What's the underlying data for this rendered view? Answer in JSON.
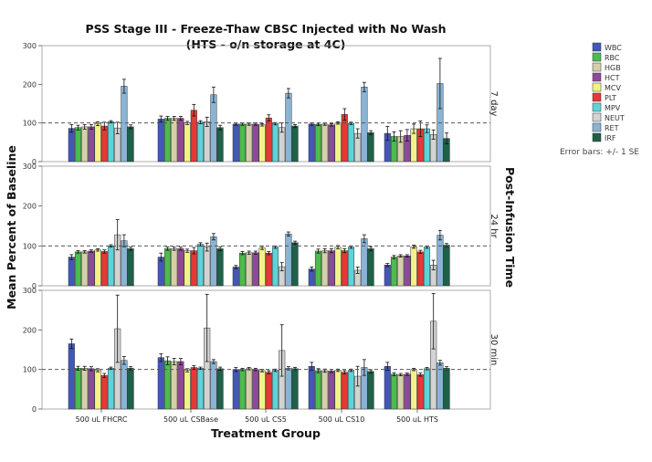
{
  "chart_data": {
    "type": "bar",
    "title": "PSS Stage III - Freeze-Thaw CBSC Injected with No Wash",
    "subtitle": "(HTS - o/n storage at 4C)",
    "xlabel": "Treatment Group",
    "ylabel": "Mean Percent of Baseline",
    "right_label": "Post-Infusion Time",
    "error_note": "Error bars: +/- 1 SE",
    "reference_line": 100,
    "ylim": [
      0,
      300
    ],
    "yticks": [
      "0",
      "100",
      "200",
      "300"
    ],
    "legend_position": "top-right",
    "categories": [
      "500 uL FHCRC",
      "500 uL CSBase",
      "500 uL CS5",
      "500 uL CS10",
      "500 uL HTS"
    ],
    "series": [
      {
        "name": "WBC",
        "color": "#4357b8"
      },
      {
        "name": "RBC",
        "color": "#4dbb4d"
      },
      {
        "name": "HGB",
        "color": "#d4d0a8"
      },
      {
        "name": "HCT",
        "color": "#8e4a9a"
      },
      {
        "name": "MCV",
        "color": "#f4f286"
      },
      {
        "name": "PLT",
        "color": "#e53935"
      },
      {
        "name": "MPV",
        "color": "#5fd3d8"
      },
      {
        "name": "NEUT",
        "color": "#d3d3d3"
      },
      {
        "name": "RET",
        "color": "#89b4d6"
      },
      {
        "name": "IRF",
        "color": "#1f6048"
      }
    ],
    "panels": [
      {
        "label": "7 day",
        "values": [
          [
            86,
            88,
            90,
            90,
            98,
            92,
            103,
            87,
            195,
            90
          ],
          [
            110,
            112,
            112,
            112,
            100,
            133,
            102,
            103,
            173,
            88
          ],
          [
            97,
            97,
            97,
            97,
            95,
            113,
            98,
            88,
            177,
            92
          ],
          [
            97,
            96,
            97,
            95,
            100,
            122,
            99,
            73,
            193,
            75
          ],
          [
            73,
            65,
            65,
            68,
            85,
            85,
            85,
            70,
            202,
            60
          ]
        ],
        "errors": [
          [
            10,
            6,
            6,
            6,
            5,
            10,
            3,
            15,
            18,
            5
          ],
          [
            8,
            5,
            5,
            5,
            4,
            15,
            4,
            12,
            20,
            6
          ],
          [
            3,
            3,
            3,
            3,
            3,
            8,
            3,
            12,
            12,
            4
          ],
          [
            3,
            3,
            3,
            3,
            3,
            15,
            3,
            12,
            12,
            5
          ],
          [
            18,
            12,
            15,
            15,
            12,
            20,
            10,
            12,
            65,
            14
          ]
        ]
      },
      {
        "label": "24 hr",
        "values": [
          [
            72,
            85,
            85,
            87,
            90,
            86,
            100,
            128,
            113,
            93
          ],
          [
            72,
            93,
            93,
            93,
            88,
            88,
            104,
            97,
            123,
            93
          ],
          [
            47,
            82,
            83,
            83,
            95,
            82,
            97,
            48,
            130,
            108
          ],
          [
            42,
            87,
            88,
            88,
            97,
            88,
            97,
            39,
            118,
            93
          ],
          [
            52,
            72,
            75,
            75,
            98,
            85,
            97,
            52,
            127,
            102
          ]
        ],
        "errors": [
          [
            6,
            3,
            3,
            3,
            3,
            4,
            3,
            38,
            15,
            4
          ],
          [
            10,
            4,
            4,
            4,
            4,
            8,
            4,
            10,
            8,
            5
          ],
          [
            4,
            4,
            4,
            4,
            4,
            4,
            3,
            10,
            5,
            4
          ],
          [
            5,
            5,
            5,
            5,
            4,
            5,
            3,
            8,
            10,
            5
          ],
          [
            4,
            4,
            3,
            3,
            4,
            4,
            3,
            12,
            12,
            4
          ]
        ]
      },
      {
        "label": "30 min",
        "values": [
          [
            165,
            103,
            103,
            102,
            98,
            85,
            103,
            203,
            123,
            103
          ],
          [
            130,
            122,
            120,
            120,
            98,
            105,
            103,
            205,
            120,
            102
          ],
          [
            100,
            100,
            102,
            100,
            97,
            93,
            98,
            148,
            103,
            102
          ],
          [
            108,
            97,
            97,
            96,
            98,
            93,
            98,
            83,
            105,
            95
          ],
          [
            108,
            88,
            87,
            88,
            100,
            87,
            102,
            222,
            117,
            103
          ]
        ],
        "errors": [
          [
            12,
            5,
            5,
            5,
            4,
            5,
            3,
            85,
            10,
            4
          ],
          [
            10,
            10,
            8,
            8,
            4,
            5,
            3,
            85,
            5,
            4
          ],
          [
            5,
            3,
            3,
            3,
            3,
            4,
            3,
            65,
            4,
            3
          ],
          [
            10,
            5,
            4,
            4,
            3,
            4,
            3,
            25,
            20,
            4
          ],
          [
            10,
            4,
            3,
            3,
            3,
            4,
            3,
            70,
            6,
            4
          ]
        ]
      }
    ]
  }
}
